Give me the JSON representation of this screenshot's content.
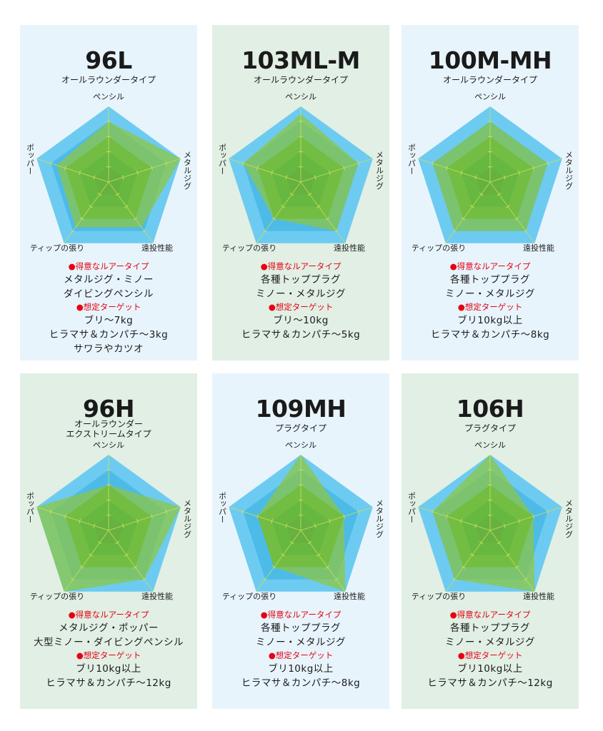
{
  "colors": {
    "bg_blue": "#e8f4fc",
    "bg_green": "#e1efe4",
    "outer": "#6dcbf1",
    "inner_blue": "#4dbbe8",
    "green1": "#6ab74b",
    "green2": "#2fa651",
    "green3": "#039447",
    "green4": "#007c45",
    "data": "#8dc63f",
    "head_red": "#e60012"
  },
  "labels": {
    "axes": [
      "ペンシル",
      "メタルジグ",
      "遠投性能",
      "ティップの張り",
      "ポッパー"
    ],
    "lure_head": "●得意なルアータイプ",
    "target_head": "●想定ターゲット"
  },
  "chart_data": [
    {
      "type": "radar",
      "title": "96L",
      "subtitle": [
        "オールラウンダータイプ"
      ],
      "axes": [
        "ペンシル",
        "メタルジグ",
        "遠投性能",
        "ティップの張り",
        "ポッパー"
      ],
      "range": [
        0,
        5
      ],
      "values": [
        4,
        5,
        3.7,
        3.7,
        3.6
      ],
      "lures": [
        "メタルジグ・ミノー",
        "ダイビングペンシル"
      ],
      "targets": [
        "ブリ〜7kg",
        "ヒラマサ＆カンパチ〜3kg",
        "サワラやカツオ"
      ],
      "bg": "blue"
    },
    {
      "type": "radar",
      "title": "103ML-M",
      "subtitle": [
        "オールラウンダータイプ"
      ],
      "axes": [
        "ペンシル",
        "メタルジグ",
        "遠投性能",
        "ティップの張り",
        "ポッパー"
      ],
      "range": [
        0,
        5
      ],
      "values": [
        4.5,
        4,
        4,
        3,
        4
      ],
      "lures": [
        "各種トッププラグ",
        "ミノー・メタルジグ"
      ],
      "targets": [
        "ブリ〜10kg",
        "ヒラマサ＆カンパチ〜5kg"
      ],
      "bg": "green"
    },
    {
      "type": "radar",
      "title": "100M-MH",
      "subtitle": [
        "オールラウンダータイプ"
      ],
      "axes": [
        "ペンシル",
        "メタルジグ",
        "遠投性能",
        "ティップの張り",
        "ポッパー"
      ],
      "range": [
        0,
        5
      ],
      "values": [
        4,
        4,
        4,
        4,
        4
      ],
      "lures": [
        "各種トッププラグ",
        "ミノー・メタルジグ"
      ],
      "targets": [
        "ブリ10kg以上",
        "ヒラマサ＆カンパチ〜8kg"
      ],
      "bg": "blue"
    },
    {
      "type": "radar",
      "title": "96H",
      "subtitle": [
        "オールラウンダー",
        "エクストリームタイプ"
      ],
      "axes": [
        "ペンシル",
        "メタルジグ",
        "遠投性能",
        "ティップの張り",
        "ポッパー"
      ],
      "range": [
        0,
        5
      ],
      "values": [
        3,
        5,
        4,
        5,
        5
      ],
      "lures": [
        "メタルジグ・ポッパー",
        "大型ミノー・ダイビングペンシル"
      ],
      "targets": [
        "ブリ10kg以上",
        "ヒラマサ＆カンパチ〜12kg"
      ],
      "bg": "green"
    },
    {
      "type": "radar",
      "title": "109MH",
      "subtitle": [
        "プラグタイプ"
      ],
      "axes": [
        "ペンシル",
        "メタルジグ",
        "遠投性能",
        "ティップの張り",
        "ポッパー"
      ],
      "range": [
        0,
        5
      ],
      "values": [
        5,
        3,
        5,
        3,
        3
      ],
      "lures": [
        "各種トッププラグ",
        "ミノー・メタルジグ"
      ],
      "targets": [
        "ブリ10kg以上",
        "ヒラマサ＆カンパチ〜8kg"
      ],
      "bg": "blue"
    },
    {
      "type": "radar",
      "title": "106H",
      "subtitle": [
        "プラグタイプ"
      ],
      "axes": [
        "ペンシル",
        "メタルジグ",
        "遠投性能",
        "ティップの張り",
        "ポッパー"
      ],
      "range": [
        0,
        5
      ],
      "values": [
        5,
        3,
        5,
        4,
        4
      ],
      "lures": [
        "各種トッププラグ",
        "ミノー・メタルジグ"
      ],
      "targets": [
        "ブリ10kg以上",
        "ヒラマサ＆カンパチ〜12kg"
      ],
      "bg": "green"
    }
  ]
}
